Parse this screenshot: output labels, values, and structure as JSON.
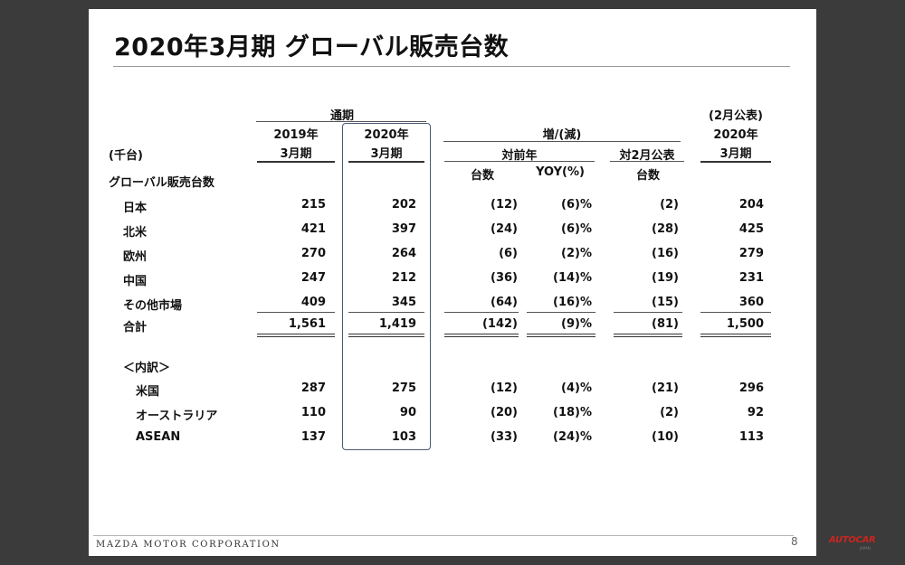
{
  "title": "2020年3月期 グローバル販売台数",
  "headers": {
    "period_group": "通期",
    "fy2019_line1": "2019年",
    "fy2019_line2": "3月期",
    "fy2020_line1": "2020年",
    "fy2020_line2": "3月期",
    "unit": "(千台)",
    "change_group": "増/(減)",
    "vs_prior_year": "対前年",
    "vs_feb_announcement": "対2月公表",
    "units_col": "台数",
    "yoy_col": "YOY(%)",
    "units_col2": "台数",
    "feb_announcement": "(2月公表)",
    "forecast_line1": "2020年",
    "forecast_line2": "3月期"
  },
  "section_label": "グローバル販売台数",
  "rows": [
    {
      "name": "日本",
      "fy2019": "215",
      "fy2020": "202",
      "diff": "(12)",
      "yoy": "(6)%",
      "vs_feb": "(2)",
      "feb": "204"
    },
    {
      "name": "北米",
      "fy2019": "421",
      "fy2020": "397",
      "diff": "(24)",
      "yoy": "(6)%",
      "vs_feb": "(28)",
      "feb": "425"
    },
    {
      "name": "欧州",
      "fy2019": "270",
      "fy2020": "264",
      "diff": "(6)",
      "yoy": "(2)%",
      "vs_feb": "(16)",
      "feb": "279"
    },
    {
      "name": "中国",
      "fy2019": "247",
      "fy2020": "212",
      "diff": "(36)",
      "yoy": "(14)%",
      "vs_feb": "(19)",
      "feb": "231"
    },
    {
      "name": "その他市場",
      "fy2019": "409",
      "fy2020": "345",
      "diff": "(64)",
      "yoy": "(16)%",
      "vs_feb": "(15)",
      "feb": "360"
    }
  ],
  "total": {
    "name": "合計",
    "fy2019": "1,561",
    "fy2020": "1,419",
    "diff": "(142)",
    "yoy": "(9)%",
    "vs_feb": "(81)",
    "feb": "1,500"
  },
  "breakdown_label": "＜内訳＞",
  "breakdown": [
    {
      "name": "米国",
      "fy2019": "287",
      "fy2020": "275",
      "diff": "(12)",
      "yoy": "(4)%",
      "vs_feb": "(21)",
      "feb": "296"
    },
    {
      "name": "オーストラリア",
      "fy2019": "110",
      "fy2020": "90",
      "diff": "(20)",
      "yoy": "(18)%",
      "vs_feb": "(2)",
      "feb": "92"
    },
    {
      "name": "ASEAN",
      "fy2019": "137",
      "fy2020": "103",
      "diff": "(33)",
      "yoy": "(24)%",
      "vs_feb": "(10)",
      "feb": "113"
    }
  ],
  "footer": {
    "company": "MAZDA MOTOR CORPORATION",
    "page": "8"
  },
  "watermark": {
    "logo": "AUTOCAR",
    "sub": "JAPAN"
  }
}
